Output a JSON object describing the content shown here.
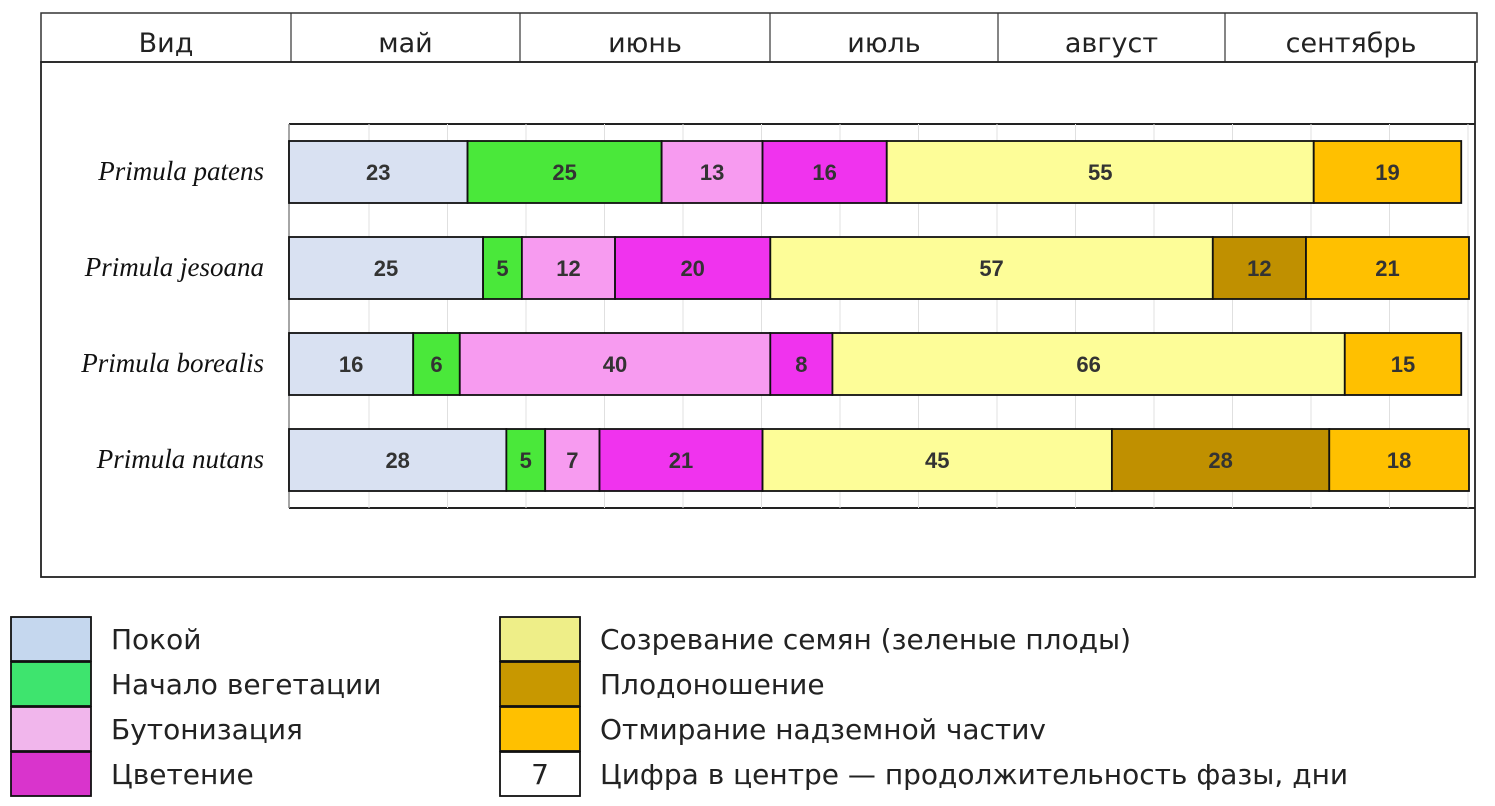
{
  "chart_data": {
    "type": "bar",
    "orientation": "horizontal",
    "stacked": true,
    "header": {
      "species_label": "Вид",
      "months": [
        "май",
        "июнь",
        "июль",
        "август",
        "сентябрь"
      ]
    },
    "phases": [
      {
        "id": "rest",
        "color": "#d9e1f2"
      },
      {
        "id": "vegetation",
        "color": "#4ae83a"
      },
      {
        "id": "budding",
        "color": "#f79bf0"
      },
      {
        "id": "flowering",
        "color": "#f033ee"
      },
      {
        "id": "ripening",
        "color": "#fdfd98"
      },
      {
        "id": "fruiting",
        "color": "#c09000"
      },
      {
        "id": "dieback",
        "color": "#ffc000"
      }
    ],
    "categories": [
      "Primula patens",
      "Primula jesoana",
      "Primula borealis",
      "Primula nutans"
    ],
    "rows": [
      {
        "species": "Primula patens",
        "segments": [
          {
            "phase": "rest",
            "days": 23
          },
          {
            "phase": "vegetation",
            "days": 25
          },
          {
            "phase": "budding",
            "days": 13
          },
          {
            "phase": "flowering",
            "days": 16
          },
          {
            "phase": "ripening",
            "days": 55
          },
          {
            "phase": "dieback",
            "days": 19
          }
        ]
      },
      {
        "species": "Primula jesoana",
        "segments": [
          {
            "phase": "rest",
            "days": 25
          },
          {
            "phase": "vegetation",
            "days": 5
          },
          {
            "phase": "budding",
            "days": 12
          },
          {
            "phase": "flowering",
            "days": 20
          },
          {
            "phase": "ripening",
            "days": 57
          },
          {
            "phase": "fruiting",
            "days": 12
          },
          {
            "phase": "dieback",
            "days": 21
          }
        ]
      },
      {
        "species": "Primula borealis",
        "segments": [
          {
            "phase": "rest",
            "days": 16
          },
          {
            "phase": "vegetation",
            "days": 6
          },
          {
            "phase": "budding",
            "days": 40
          },
          {
            "phase": "flowering",
            "days": 8
          },
          {
            "phase": "ripening",
            "days": 66
          },
          {
            "phase": "dieback",
            "days": 15
          }
        ]
      },
      {
        "species": "Primula nutans",
        "segments": [
          {
            "phase": "rest",
            "days": 28
          },
          {
            "phase": "vegetation",
            "days": 5
          },
          {
            "phase": "budding",
            "days": 7
          },
          {
            "phase": "flowering",
            "days": 21
          },
          {
            "phase": "ripening",
            "days": 45
          },
          {
            "phase": "fruiting",
            "days": 28
          },
          {
            "phase": "dieback",
            "days": 18
          }
        ]
      }
    ],
    "grid": true,
    "legend": {
      "placement": "bottom",
      "items": [
        {
          "label": "Покой",
          "color": "#c5d7ee"
        },
        {
          "label": "Начало вегетации",
          "color": "#3ee46e"
        },
        {
          "label": "Бутонизация",
          "color": "#f1b6ec"
        },
        {
          "label": "Цветение",
          "color": "#d934cc"
        },
        {
          "label": "Созревание семян (зеленые плоды)",
          "color": "#eeee88"
        },
        {
          "label": "Плодоношение",
          "color": "#c89800"
        },
        {
          "label": "Отмирание надземной частиv",
          "color": "#ffc000"
        },
        {
          "label": "Цифра в центре — продолжительность фазы, дни",
          "color": "#ffffff",
          "sample": "7"
        }
      ]
    }
  }
}
